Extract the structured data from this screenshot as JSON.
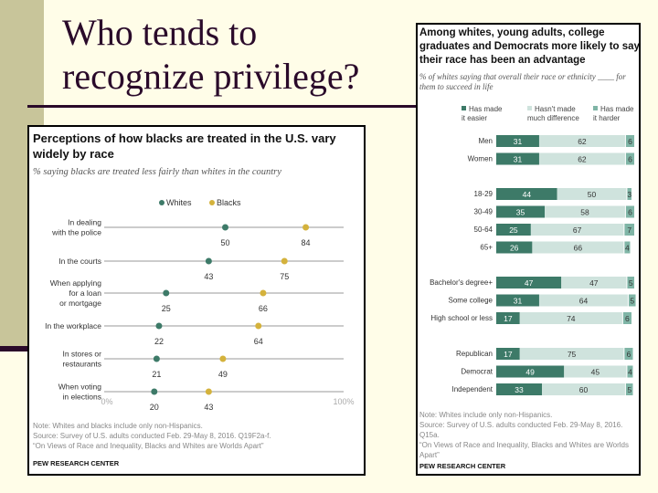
{
  "slide": {
    "title_line1": "Who tends to",
    "title_line2": "recognize privilege?",
    "colors": {
      "background": "#fffde8",
      "stripe": "#c8c59a",
      "rule": "#2a0a2a"
    }
  },
  "chart_data": [
    {
      "type": "dot",
      "title": "Perceptions of how blacks are treated in the U.S. vary widely by race",
      "subtitle": "% saying blacks are treated less fairly than whites in the country",
      "categories": [
        "In dealing with the police",
        "In the courts",
        "When applying for a loan or mortgage",
        "In the workplace",
        "In stores or restaurants",
        "When voting in elections"
      ],
      "series": [
        {
          "name": "Whites",
          "color": "#3d7a68",
          "values": [
            50,
            43,
            25,
            22,
            21,
            20
          ]
        },
        {
          "name": "Blacks",
          "color": "#d4b23c",
          "values": [
            84,
            75,
            66,
            64,
            49,
            43
          ]
        }
      ],
      "xlim": [
        0,
        100
      ],
      "axis_labels": [
        "0%",
        "100%"
      ],
      "legend": "top",
      "note": "Note: Whites and blacks include only non-Hispanics.",
      "source": "Source: Survey of U.S. adults conducted Feb. 29-May 8, 2016. Q19F2a-f.",
      "report": "“On Views of Race and Inequality, Blacks and Whites are Worlds Apart”",
      "brand": "PEW RESEARCH CENTER"
    },
    {
      "type": "stacked-bar",
      "title": "Among whites, young adults, college graduates and Democrats more likely to say their race has been an advantage",
      "subtitle": "% of whites saying that overall their race or ethnicity ____ for them to succeed in life",
      "legend": "top",
      "series": [
        {
          "name": "Has made it easier",
          "color": "#3d7a68"
        },
        {
          "name": "Hasn't made much difference",
          "color": "#cfe3dd"
        },
        {
          "name": "Has made it harder",
          "color": "#7fb5a6"
        }
      ],
      "groups": [
        [
          {
            "label": "Men",
            "values": [
              31,
              62,
              6
            ]
          },
          {
            "label": "Women",
            "values": [
              31,
              62,
              6
            ]
          }
        ],
        [
          {
            "label": "18-29",
            "values": [
              44,
              50,
              3
            ]
          },
          {
            "label": "30-49",
            "values": [
              35,
              58,
              6
            ]
          },
          {
            "label": "50-64",
            "values": [
              25,
              67,
              7
            ]
          },
          {
            "label": "65+",
            "values": [
              26,
              66,
              4
            ]
          }
        ],
        [
          {
            "label": "Bachelor's degree+",
            "values": [
              47,
              47,
              5
            ]
          },
          {
            "label": "Some college",
            "values": [
              31,
              64,
              5
            ]
          },
          {
            "label": "High school or less",
            "values": [
              17,
              74,
              6
            ]
          }
        ],
        [
          {
            "label": "Republican",
            "values": [
              17,
              75,
              6
            ]
          },
          {
            "label": "Democrat",
            "values": [
              49,
              45,
              4
            ]
          },
          {
            "label": "Independent",
            "values": [
              33,
              60,
              5
            ]
          }
        ]
      ],
      "note": "Note: Whites include only non-Hispanics.",
      "source": "Source: Survey of U.S. adults conducted Feb. 29-May 8, 2016. Q15a.",
      "report": "“On Views of Race and Inequality, Blacks and Whites are Worlds Apart”",
      "brand": "PEW RESEARCH CENTER"
    }
  ]
}
